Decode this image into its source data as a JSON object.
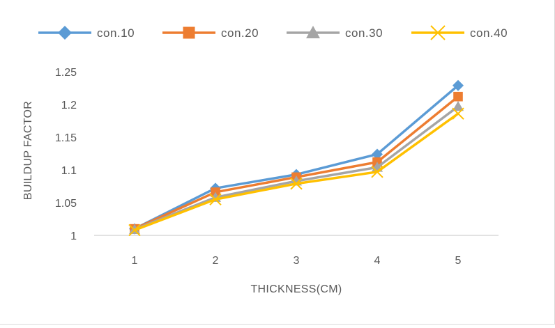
{
  "chart_data": {
    "type": "line",
    "title": "",
    "xlabel": "THICKNESS(CM)",
    "ylabel": "BUILDUP FACTOR",
    "categories": [
      "1",
      "2",
      "3",
      "4",
      "5"
    ],
    "ylim": [
      1,
      1.25
    ],
    "yticks": [
      "1",
      "1.05",
      "1.1",
      "1.15",
      "1.2",
      "1.25"
    ],
    "grid": false,
    "legend_position": "top",
    "series": [
      {
        "name": "con.10",
        "color": "#5B9BD5",
        "marker": "diamond",
        "values": [
          1.01,
          1.072,
          1.093,
          1.124,
          1.229
        ]
      },
      {
        "name": "con.20",
        "color": "#ED7D31",
        "marker": "square",
        "values": [
          1.01,
          1.066,
          1.089,
          1.112,
          1.212
        ]
      },
      {
        "name": "con.30",
        "color": "#A5A5A5",
        "marker": "triangle",
        "values": [
          1.009,
          1.058,
          1.083,
          1.104,
          1.197
        ]
      },
      {
        "name": "con.40",
        "color": "#FFC000",
        "marker": "x",
        "values": [
          1.008,
          1.055,
          1.079,
          1.097,
          1.186
        ]
      }
    ]
  }
}
